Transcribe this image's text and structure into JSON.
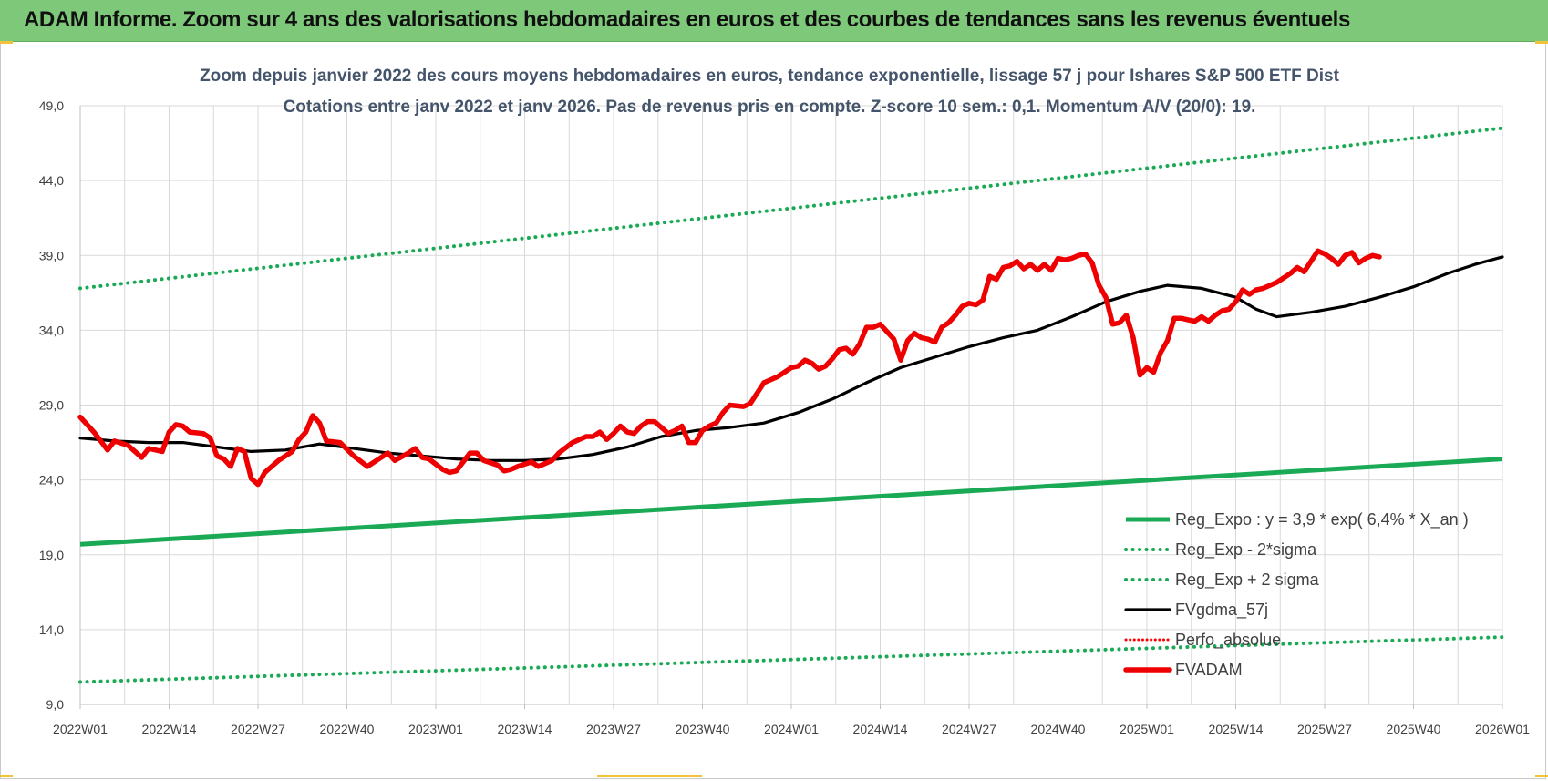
{
  "header": {
    "title": "ADAM Informe. Zoom sur 4 ans des valorisations hebdomadaires en euros et des courbes de tendances sans les revenus éventuels"
  },
  "colors": {
    "banner": "#7ec87a",
    "regression": "#1aaa55",
    "price": "#ee0000",
    "moving_average": "#000000",
    "perfo": "#ff0000",
    "grid": "#d9d9d9"
  },
  "chart_data": {
    "type": "line",
    "title_lines": [
      "Zoom depuis janvier 2022 des cours moyens hebdomadaires en euros, tendance exponentielle, lissage 57 j pour Ishares S&P 500 ETF Dist",
      "Cotations entre janv 2022 et janv 2026. Pas de revenus pris en compte. Z-score 10 sem.: 0,1. Momentum A/V (20/0): 19."
    ],
    "x_tick_labels": [
      "2022W01",
      "2022W14",
      "2022W27",
      "2022W40",
      "2023W01",
      "2023W14",
      "2023W27",
      "2023W40",
      "2024W01",
      "2024W14",
      "2024W27",
      "2024W40",
      "2025W01",
      "2025W14",
      "2025W27",
      "2025W40",
      "2026W01"
    ],
    "x_range_weeks": [
      0,
      208
    ],
    "y_ticks": [
      "9,0",
      "14,0",
      "19,0",
      "24,0",
      "29,0",
      "34,0",
      "39,0",
      "44,0",
      "49,0"
    ],
    "y_tick_values": [
      9,
      14,
      19,
      24,
      29,
      34,
      39,
      44,
      49
    ],
    "ylim": [
      9,
      49
    ],
    "grid": true,
    "legend_position": "bottom-right",
    "legend": [
      {
        "key": "reg_expo",
        "label": "Reg_Expo : y = 3,9 * exp( 6,4% *  X_an )"
      },
      {
        "key": "reg_minus",
        "label": "Reg_Exp - 2*sigma"
      },
      {
        "key": "reg_plus",
        "label": "Reg_Exp + 2 sigma"
      },
      {
        "key": "fvgdma",
        "label": "FVgdma_57j"
      },
      {
        "key": "perfo",
        "label": "Perfo_absolue"
      },
      {
        "key": "fvadam",
        "label": "FVADAM"
      }
    ],
    "series": [
      {
        "key": "reg_plus",
        "points": [
          [
            0,
            36.8
          ],
          [
            208,
            47.5
          ]
        ]
      },
      {
        "key": "reg_expo",
        "points": [
          [
            0,
            19.7
          ],
          [
            208,
            25.4
          ]
        ]
      },
      {
        "key": "reg_minus",
        "points": [
          [
            0,
            10.5
          ],
          [
            208,
            13.5
          ]
        ]
      },
      {
        "key": "fvgdma",
        "points": [
          [
            0,
            26.8
          ],
          [
            5,
            26.6
          ],
          [
            10,
            26.5
          ],
          [
            15,
            26.5
          ],
          [
            20,
            26.2
          ],
          [
            25,
            25.9
          ],
          [
            30,
            26.0
          ],
          [
            35,
            26.4
          ],
          [
            40,
            26.1
          ],
          [
            45,
            25.8
          ],
          [
            50,
            25.6
          ],
          [
            55,
            25.4
          ],
          [
            60,
            25.3
          ],
          [
            65,
            25.3
          ],
          [
            70,
            25.4
          ],
          [
            75,
            25.7
          ],
          [
            80,
            26.2
          ],
          [
            85,
            26.9
          ],
          [
            90,
            27.3
          ],
          [
            95,
            27.5
          ],
          [
            100,
            27.8
          ],
          [
            105,
            28.5
          ],
          [
            110,
            29.4
          ],
          [
            115,
            30.5
          ],
          [
            120,
            31.5
          ],
          [
            125,
            32.2
          ],
          [
            130,
            32.9
          ],
          [
            135,
            33.5
          ],
          [
            140,
            34.0
          ],
          [
            145,
            34.9
          ],
          [
            150,
            35.9
          ],
          [
            155,
            36.6
          ],
          [
            159,
            37.0
          ],
          [
            164,
            36.8
          ],
          [
            169,
            36.2
          ],
          [
            172,
            35.4
          ],
          [
            175,
            34.9
          ],
          [
            180,
            35.2
          ],
          [
            185,
            35.6
          ],
          [
            190,
            36.2
          ],
          [
            195,
            36.9
          ],
          [
            200,
            37.8
          ],
          [
            204,
            38.4
          ],
          [
            208,
            38.9
          ]
        ]
      },
      {
        "key": "fvadam",
        "points": [
          [
            0,
            28.2
          ],
          [
            2,
            27.2
          ],
          [
            4,
            26.0
          ],
          [
            5,
            26.6
          ],
          [
            7,
            26.3
          ],
          [
            9,
            25.5
          ],
          [
            10,
            26.1
          ],
          [
            12,
            25.9
          ],
          [
            13,
            27.2
          ],
          [
            14,
            27.7
          ],
          [
            15,
            27.6
          ],
          [
            16,
            27.2
          ],
          [
            18,
            27.1
          ],
          [
            19,
            26.8
          ],
          [
            20,
            25.6
          ],
          [
            21,
            25.4
          ],
          [
            22,
            24.9
          ],
          [
            23,
            26.1
          ],
          [
            24,
            25.9
          ],
          [
            25,
            24.1
          ],
          [
            26,
            23.7
          ],
          [
            27,
            24.5
          ],
          [
            29,
            25.3
          ],
          [
            31,
            25.9
          ],
          [
            32,
            26.7
          ],
          [
            33,
            27.2
          ],
          [
            34,
            28.3
          ],
          [
            35,
            27.8
          ],
          [
            36,
            26.6
          ],
          [
            38,
            26.5
          ],
          [
            40,
            25.6
          ],
          [
            42,
            24.9
          ],
          [
            43,
            25.2
          ],
          [
            45,
            25.8
          ],
          [
            46,
            25.3
          ],
          [
            48,
            25.8
          ],
          [
            49,
            26.1
          ],
          [
            50,
            25.5
          ],
          [
            51,
            25.4
          ],
          [
            53,
            24.7
          ],
          [
            54,
            24.5
          ],
          [
            55,
            24.6
          ],
          [
            57,
            25.8
          ],
          [
            58,
            25.8
          ],
          [
            59,
            25.3
          ],
          [
            61,
            25.0
          ],
          [
            62,
            24.6
          ],
          [
            63,
            24.7
          ],
          [
            64,
            24.9
          ],
          [
            66,
            25.2
          ],
          [
            67,
            24.9
          ],
          [
            69,
            25.3
          ],
          [
            70,
            25.8
          ],
          [
            72,
            26.5
          ],
          [
            74,
            26.9
          ],
          [
            75,
            26.9
          ],
          [
            76,
            27.2
          ],
          [
            77,
            26.7
          ],
          [
            78,
            27.1
          ],
          [
            79,
            27.6
          ],
          [
            80,
            27.2
          ],
          [
            81,
            27.1
          ],
          [
            82,
            27.6
          ],
          [
            83,
            27.9
          ],
          [
            84,
            27.9
          ],
          [
            85,
            27.5
          ],
          [
            86,
            27.1
          ],
          [
            87,
            27.3
          ],
          [
            88,
            27.6
          ],
          [
            89,
            26.5
          ],
          [
            90,
            26.5
          ],
          [
            91,
            27.3
          ],
          [
            92,
            27.6
          ],
          [
            93,
            27.8
          ],
          [
            94,
            28.5
          ],
          [
            95,
            29.0
          ],
          [
            97,
            28.9
          ],
          [
            98,
            29.1
          ],
          [
            99,
            29.8
          ],
          [
            100,
            30.5
          ],
          [
            101,
            30.7
          ],
          [
            102,
            30.9
          ],
          [
            103,
            31.2
          ],
          [
            104,
            31.5
          ],
          [
            105,
            31.6
          ],
          [
            106,
            32.0
          ],
          [
            107,
            31.8
          ],
          [
            108,
            31.4
          ],
          [
            109,
            31.6
          ],
          [
            110,
            32.1
          ],
          [
            111,
            32.7
          ],
          [
            112,
            32.8
          ],
          [
            113,
            32.4
          ],
          [
            114,
            33.1
          ],
          [
            115,
            34.2
          ],
          [
            116,
            34.2
          ],
          [
            117,
            34.4
          ],
          [
            118,
            33.9
          ],
          [
            119,
            33.4
          ],
          [
            120,
            32.0
          ],
          [
            121,
            33.3
          ],
          [
            122,
            33.8
          ],
          [
            123,
            33.5
          ],
          [
            124,
            33.4
          ],
          [
            125,
            33.2
          ],
          [
            126,
            34.2
          ],
          [
            127,
            34.5
          ],
          [
            128,
            35.0
          ],
          [
            129,
            35.6
          ],
          [
            130,
            35.8
          ],
          [
            131,
            35.7
          ],
          [
            132,
            36.0
          ],
          [
            133,
            37.6
          ],
          [
            134,
            37.4
          ],
          [
            135,
            38.2
          ],
          [
            136,
            38.3
          ],
          [
            137,
            38.6
          ],
          [
            138,
            38.1
          ],
          [
            139,
            38.4
          ],
          [
            140,
            38.0
          ],
          [
            141,
            38.4
          ],
          [
            142,
            38.0
          ],
          [
            143,
            38.8
          ],
          [
            144,
            38.7
          ],
          [
            145,
            38.8
          ],
          [
            146,
            39.0
          ],
          [
            147,
            39.1
          ],
          [
            148,
            38.5
          ],
          [
            149,
            37.0
          ],
          [
            150,
            36.2
          ],
          [
            151,
            34.4
          ],
          [
            152,
            34.5
          ],
          [
            153,
            35.0
          ],
          [
            154,
            33.5
          ],
          [
            155,
            31.0
          ],
          [
            156,
            31.5
          ],
          [
            157,
            31.2
          ],
          [
            158,
            32.5
          ],
          [
            159,
            33.3
          ],
          [
            160,
            34.8
          ],
          [
            161,
            34.8
          ],
          [
            162,
            34.7
          ],
          [
            163,
            34.6
          ],
          [
            164,
            34.9
          ],
          [
            165,
            34.6
          ],
          [
            166,
            35.0
          ],
          [
            167,
            35.3
          ],
          [
            168,
            35.4
          ],
          [
            169,
            35.9
          ],
          [
            170,
            36.7
          ],
          [
            171,
            36.4
          ],
          [
            172,
            36.7
          ],
          [
            173,
            36.8
          ],
          [
            174,
            37.0
          ],
          [
            175,
            37.2
          ],
          [
            176,
            37.5
          ],
          [
            177,
            37.8
          ],
          [
            178,
            38.2
          ],
          [
            179,
            37.9
          ],
          [
            180,
            38.6
          ],
          [
            181,
            39.3
          ],
          [
            182,
            39.1
          ],
          [
            183,
            38.8
          ],
          [
            184,
            38.4
          ],
          [
            185,
            39.0
          ],
          [
            186,
            39.2
          ],
          [
            187,
            38.5
          ],
          [
            188,
            38.8
          ],
          [
            189,
            39.0
          ],
          [
            190,
            38.9
          ]
        ]
      }
    ]
  }
}
